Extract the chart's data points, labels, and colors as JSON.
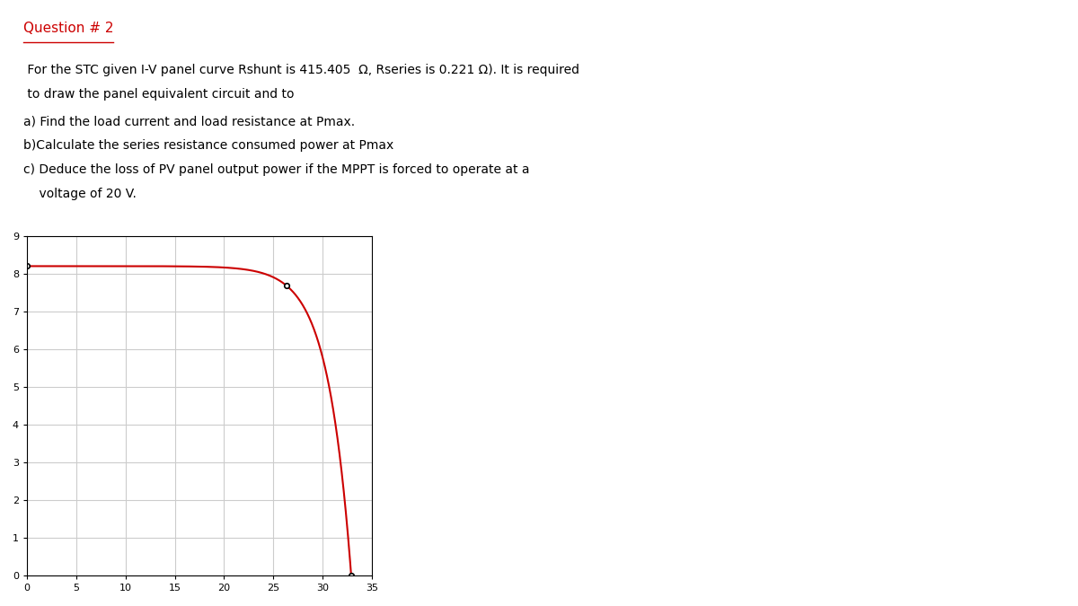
{
  "title": "Question # 2",
  "title_color": "#cc0000",
  "body_text_line1": " For the STC given I-V panel curve Rshunt is 415.405  Ω, Rseries is 0.221 Ω). It is required",
  "body_text_line2": " to draw the panel equivalent circuit and to",
  "body_text_line3": "a) Find the load current and load resistance at Pmax.",
  "body_text_line4": "b)Calculate the series resistance consumed power at Pmax",
  "body_text_line5": "c) Deduce the loss of PV panel output power if the MPPT is forced to operate at a",
  "body_text_line6": "    voltage of 20 V.",
  "isc": 8.21,
  "voc": 32.9,
  "imp": 7.7,
  "vmp": 26.3,
  "curve_color": "#cc0000",
  "point1_x": 0.0,
  "point1_y": 8.21,
  "point2_x": 26.3,
  "point2_y": 7.7,
  "point3_x": 32.9,
  "point3_y": 0.0,
  "xlim": [
    0,
    35
  ],
  "ylim": [
    0,
    9
  ],
  "xticks": [
    0,
    5,
    10,
    15,
    20,
    25,
    30,
    35
  ],
  "yticks": [
    0,
    1,
    2,
    3,
    4,
    5,
    6,
    7,
    8,
    9
  ],
  "grid_color": "#cccccc",
  "fig_width": 12.0,
  "fig_height": 6.75,
  "dpi": 100,
  "text_fontsize": 10,
  "title_fontsize": 11
}
